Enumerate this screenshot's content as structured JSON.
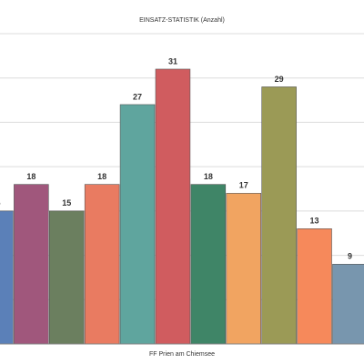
{
  "chart_data": {
    "type": "bar",
    "title": "EINSATZ-STATISTIK (Anzahl)",
    "x_label": "FF Prien am Chiemsee",
    "categories": [
      null,
      null,
      null,
      null,
      null,
      null,
      null,
      null,
      null,
      null,
      null
    ],
    "values": [
      15,
      18,
      15,
      18,
      27,
      31,
      18,
      17,
      29,
      13,
      9
    ],
    "colors": [
      "#5b80b8",
      "#a0577c",
      "#6b7f5f",
      "#e97b61",
      "#5fa59e",
      "#d05c5f",
      "#3f8567",
      "#f1a461",
      "#9b9a56",
      "#f6895b",
      "#7896ae"
    ],
    "ylim": [
      0,
      35
    ],
    "yticks": [
      0,
      5,
      10,
      15,
      20,
      25,
      30,
      35
    ],
    "grid": true
  }
}
